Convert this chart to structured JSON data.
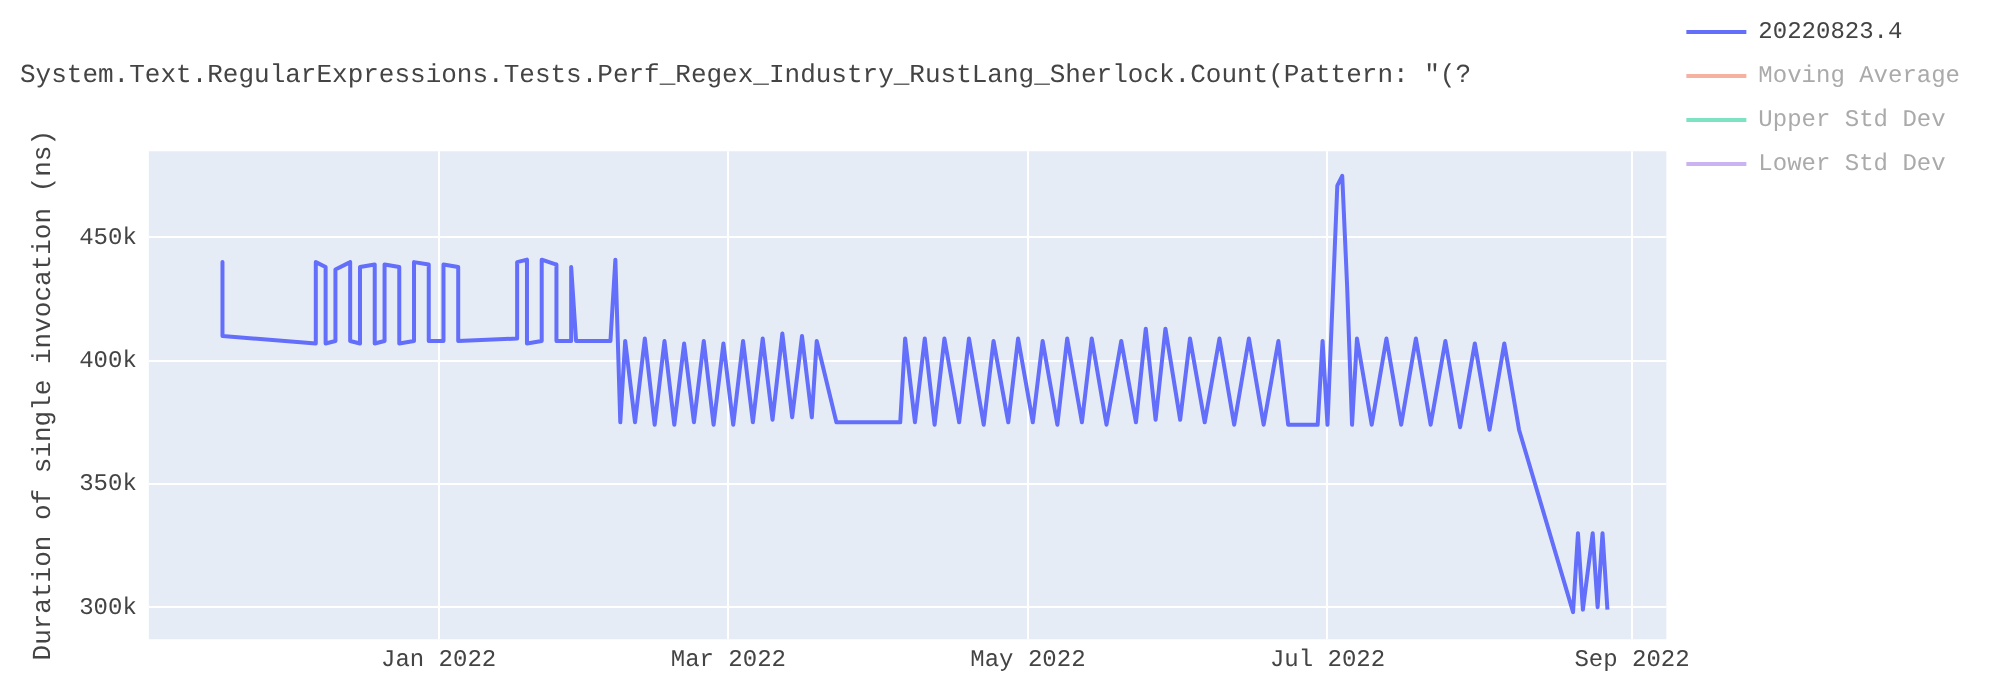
{
  "chart_data": {
    "type": "line",
    "title": "System.Text.RegularExpressions.Tests.Perf_Regex_Industry_RustLang_Sherlock.Count(Pattern: \"(?",
    "ylabel": "Duration of single invocation (ns)",
    "x": [
      "2021-11-18",
      "2021-11-18",
      "2021-12-07",
      "2021-12-07",
      "2021-12-09",
      "2021-12-09",
      "2021-12-11",
      "2021-12-11",
      "2021-12-14",
      "2021-12-14",
      "2021-12-16",
      "2021-12-16",
      "2021-12-19",
      "2021-12-19",
      "2021-12-21",
      "2021-12-21",
      "2021-12-24",
      "2021-12-24",
      "2021-12-27",
      "2021-12-27",
      "2021-12-30",
      "2021-12-30",
      "2022-01-02",
      "2022-01-02",
      "2022-01-05",
      "2022-01-05",
      "2022-01-17",
      "2022-01-17",
      "2022-01-19",
      "2022-01-19",
      "2022-01-22",
      "2022-01-22",
      "2022-01-25",
      "2022-01-25",
      "2022-01-28",
      "2022-01-28",
      "2022-01-29",
      "2022-02-05",
      "2022-02-06",
      "2022-02-07",
      "2022-02-08",
      "2022-02-10",
      "2022-02-12",
      "2022-02-14",
      "2022-02-16",
      "2022-02-18",
      "2022-02-20",
      "2022-02-22",
      "2022-02-24",
      "2022-02-26",
      "2022-02-28",
      "2022-03-02",
      "2022-03-04",
      "2022-03-06",
      "2022-03-08",
      "2022-03-10",
      "2022-03-12",
      "2022-03-14",
      "2022-03-16",
      "2022-03-18",
      "2022-03-19",
      "2022-03-23",
      "2022-04-05",
      "2022-04-06",
      "2022-04-08",
      "2022-04-10",
      "2022-04-12",
      "2022-04-14",
      "2022-04-17",
      "2022-04-19",
      "2022-04-22",
      "2022-04-24",
      "2022-04-27",
      "2022-04-29",
      "2022-05-02",
      "2022-05-04",
      "2022-05-07",
      "2022-05-09",
      "2022-05-12",
      "2022-05-14",
      "2022-05-17",
      "2022-05-20",
      "2022-05-23",
      "2022-05-25",
      "2022-05-27",
      "2022-05-29",
      "2022-06-01",
      "2022-06-03",
      "2022-06-06",
      "2022-06-09",
      "2022-06-12",
      "2022-06-15",
      "2022-06-18",
      "2022-06-21",
      "2022-06-23",
      "2022-06-29",
      "2022-06-30",
      "2022-07-01",
      "2022-07-03",
      "2022-07-04",
      "2022-07-05",
      "2022-07-06",
      "2022-07-07",
      "2022-07-10",
      "2022-07-13",
      "2022-07-16",
      "2022-07-19",
      "2022-07-22",
      "2022-07-25",
      "2022-07-28",
      "2022-07-31",
      "2022-08-03",
      "2022-08-06",
      "2022-08-09",
      "2022-08-20",
      "2022-08-21",
      "2022-08-22",
      "2022-08-24",
      "2022-08-25",
      "2022-08-26",
      "2022-08-27"
    ],
    "series": [
      {
        "name": "20220823.4",
        "color": "#636efa",
        "values": [
          440000,
          410000,
          407000,
          440000,
          438000,
          407000,
          408000,
          437000,
          440000,
          408000,
          407000,
          438000,
          439000,
          407000,
          408000,
          439000,
          438000,
          407000,
          408000,
          440000,
          439000,
          408000,
          408000,
          439000,
          438000,
          408000,
          409000,
          440000,
          441000,
          407000,
          408000,
          441000,
          439000,
          408000,
          408000,
          438000,
          408000,
          408000,
          441000,
          375000,
          408000,
          375000,
          409000,
          374000,
          408000,
          374000,
          407000,
          375000,
          408000,
          374000,
          407000,
          374000,
          408000,
          375000,
          409000,
          376000,
          411000,
          377000,
          410000,
          377000,
          408000,
          375000,
          375000,
          409000,
          375000,
          409000,
          374000,
          409000,
          375000,
          409000,
          374000,
          408000,
          375000,
          409000,
          375000,
          408000,
          374000,
          409000,
          375000,
          409000,
          374000,
          408000,
          375000,
          413000,
          376000,
          413000,
          376000,
          409000,
          375000,
          409000,
          374000,
          409000,
          374000,
          408000,
          374000,
          374000,
          408000,
          374000,
          471000,
          475000,
          430000,
          374000,
          409000,
          374000,
          409000,
          374000,
          409000,
          374000,
          408000,
          373000,
          407000,
          372000,
          407000,
          372000,
          298000,
          330000,
          299000,
          330000,
          300000,
          330000,
          299000
        ]
      },
      {
        "name": "Moving Average",
        "color": "#f6b2a0",
        "values": [
          null,
          null,
          null,
          null,
          null,
          null,
          null,
          null,
          null,
          null,
          null,
          null,
          null,
          null,
          null,
          null,
          null,
          null,
          null,
          null,
          null,
          null,
          null,
          null,
          null,
          null,
          null,
          null,
          null,
          null,
          null,
          null,
          null,
          null,
          null,
          null,
          null,
          null,
          null,
          null,
          null,
          null,
          null,
          null,
          null,
          null,
          null,
          null,
          null,
          null,
          null,
          null,
          null,
          null,
          null,
          null,
          null,
          null,
          null,
          null,
          null,
          null,
          null,
          null,
          null,
          null,
          null,
          null,
          null,
          null,
          null,
          null,
          null,
          null,
          null,
          null,
          null,
          null,
          null,
          null,
          null,
          null,
          null,
          null,
          null,
          null,
          null,
          null,
          null,
          null,
          null,
          null,
          null,
          null,
          null,
          null,
          null,
          null,
          null,
          null,
          null,
          null,
          null,
          null,
          null,
          null,
          null,
          null,
          null,
          null,
          null,
          null,
          null,
          null,
          null,
          null,
          null,
          null,
          null,
          null,
          null
        ]
      },
      {
        "name": "Upper Std Dev",
        "color": "#7ee3c2",
        "values": [
          null,
          null,
          null,
          null,
          null,
          null,
          null,
          null,
          null,
          null,
          null,
          null,
          null,
          null,
          null,
          null,
          null,
          null,
          null,
          null,
          null,
          null,
          null,
          null,
          null,
          null,
          null,
          null,
          null,
          null,
          null,
          null,
          null,
          null,
          null,
          null,
          null,
          null,
          null,
          null,
          null,
          null,
          null,
          null,
          null,
          null,
          null,
          null,
          null,
          null,
          null,
          null,
          null,
          null,
          null,
          null,
          null,
          null,
          null,
          null,
          null,
          null,
          null,
          null,
          null,
          null,
          null,
          null,
          null,
          null,
          null,
          null,
          null,
          null,
          null,
          null,
          null,
          null,
          null,
          null,
          null,
          null,
          null,
          null,
          null,
          null,
          null,
          null,
          null,
          null,
          null,
          null,
          null,
          null,
          null,
          null,
          null,
          null,
          null,
          null,
          null,
          null,
          null,
          null,
          null,
          null,
          null,
          null,
          null,
          null,
          null,
          null,
          null,
          null,
          null,
          null,
          null,
          null,
          null,
          null,
          null
        ]
      },
      {
        "name": "Lower Std Dev",
        "color": "#cbb2f2",
        "values": [
          null,
          null,
          null,
          null,
          null,
          null,
          null,
          null,
          null,
          null,
          null,
          null,
          null,
          null,
          null,
          null,
          null,
          null,
          null,
          null,
          null,
          null,
          null,
          null,
          null,
          null,
          null,
          null,
          null,
          null,
          null,
          null,
          null,
          null,
          null,
          null,
          null,
          null,
          null,
          null,
          null,
          null,
          null,
          null,
          null,
          null,
          null,
          null,
          null,
          null,
          null,
          null,
          null,
          null,
          null,
          null,
          null,
          null,
          null,
          null,
          null,
          null,
          null,
          null,
          null,
          null,
          null,
          null,
          null,
          null,
          null,
          null,
          null,
          null,
          null,
          null,
          null,
          null,
          null,
          null,
          null,
          null,
          null,
          null,
          null,
          null,
          null,
          null,
          null,
          null,
          null,
          null,
          null,
          null,
          null,
          null,
          null,
          null,
          null,
          null,
          null,
          null,
          null,
          null,
          null,
          null,
          null,
          null,
          null,
          null,
          null,
          null,
          null,
          null,
          null,
          null,
          null,
          null,
          null,
          null,
          null
        ]
      }
    ],
    "xlim": [
      "2021-11-03",
      "2022-09-08"
    ],
    "xticks": [
      {
        "value": "2022-01-01",
        "label": "Jan 2022"
      },
      {
        "value": "2022-03-01",
        "label": "Mar 2022"
      },
      {
        "value": "2022-05-01",
        "label": "May 2022"
      },
      {
        "value": "2022-07-01",
        "label": "Jul 2022"
      },
      {
        "value": "2022-09-01",
        "label": "Sep 2022"
      }
    ],
    "ylim": [
      287000,
      485000
    ],
    "yticks": [
      {
        "value": 300000,
        "label": "300k"
      },
      {
        "value": 350000,
        "label": "350k"
      },
      {
        "value": 400000,
        "label": "400k"
      },
      {
        "value": 450000,
        "label": "450k"
      }
    ],
    "grid": true,
    "legend": "right",
    "marker": "none",
    "line_style": "solid"
  }
}
